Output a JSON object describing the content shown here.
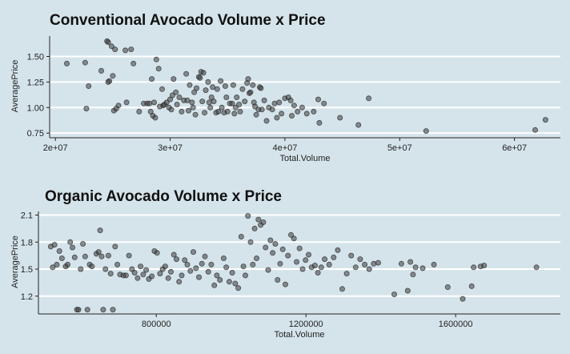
{
  "chart_data": [
    {
      "type": "scatter",
      "title": "Conventional Avocado Volume x Price",
      "xlabel": "Total.Volume",
      "ylabel": "AveragePrice",
      "xlim": [
        19500000,
        64000000
      ],
      "ylim": [
        0.72,
        1.7
      ],
      "xticks": [
        20000000,
        30000000,
        40000000,
        50000000,
        60000000
      ],
      "xtick_labels": [
        "2e+07",
        "3e+07",
        "4e+07",
        "5e+07",
        "6e+07"
      ],
      "yticks": [
        0.75,
        1.0,
        1.25,
        1.5
      ],
      "ytick_labels": [
        "0.75",
        "1.00",
        "1.25",
        "1.50"
      ],
      "grid": true,
      "points": [
        [
          21000000,
          1.43
        ],
        [
          22600000,
          1.44
        ],
        [
          22900000,
          1.21
        ],
        [
          22700000,
          0.99
        ],
        [
          24000000,
          1.36
        ],
        [
          24500000,
          1.65
        ],
        [
          24600000,
          1.64
        ],
        [
          24900000,
          1.6
        ],
        [
          25200000,
          1.57
        ],
        [
          25000000,
          1.31
        ],
        [
          24700000,
          1.26
        ],
        [
          24600000,
          1.25
        ],
        [
          25100000,
          0.97
        ],
        [
          25300000,
          0.99
        ],
        [
          26100000,
          1.56
        ],
        [
          26600000,
          1.57
        ],
        [
          26800000,
          1.43
        ],
        [
          25500000,
          1.02
        ],
        [
          26200000,
          1.05
        ],
        [
          27300000,
          0.96
        ],
        [
          27700000,
          1.04
        ],
        [
          28000000,
          1.04
        ],
        [
          28200000,
          1.04
        ],
        [
          28300000,
          0.96
        ],
        [
          28500000,
          0.92
        ],
        [
          28700000,
          0.9
        ],
        [
          28800000,
          1.47
        ],
        [
          29000000,
          1.38
        ],
        [
          28400000,
          1.28
        ],
        [
          28600000,
          1.05
        ],
        [
          29100000,
          1.01
        ],
        [
          29300000,
          1.18
        ],
        [
          29400000,
          1.02
        ],
        [
          29500000,
          1.03
        ],
        [
          29700000,
          1.05
        ],
        [
          29900000,
          1.0
        ],
        [
          30000000,
          1.08
        ],
        [
          30100000,
          0.98
        ],
        [
          30200000,
          1.12
        ],
        [
          30300000,
          1.28
        ],
        [
          30500000,
          1.15
        ],
        [
          30600000,
          1.03
        ],
        [
          30800000,
          1.1
        ],
        [
          31000000,
          0.96
        ],
        [
          31200000,
          1.07
        ],
        [
          31400000,
          1.33
        ],
        [
          31500000,
          1.07
        ],
        [
          31600000,
          0.97
        ],
        [
          31700000,
          1.22
        ],
        [
          31900000,
          1.05
        ],
        [
          32000000,
          1.0
        ],
        [
          32100000,
          1.15
        ],
        [
          32200000,
          0.93
        ],
        [
          32300000,
          1.19
        ],
        [
          32500000,
          1.3
        ],
        [
          32600000,
          1.29
        ],
        [
          32700000,
          1.35
        ],
        [
          32800000,
          1.06
        ],
        [
          32900000,
          1.34
        ],
        [
          33000000,
          0.95
        ],
        [
          33100000,
          1.17
        ],
        [
          33300000,
          1.25
        ],
        [
          33400000,
          1.05
        ],
        [
          33500000,
          1.0
        ],
        [
          33600000,
          1.1
        ],
        [
          33700000,
          1.2
        ],
        [
          33800000,
          1.06
        ],
        [
          34000000,
          0.95
        ],
        [
          34100000,
          1.18
        ],
        [
          34200000,
          0.96
        ],
        [
          34400000,
          1.26
        ],
        [
          34500000,
          1.0
        ],
        [
          34700000,
          0.95
        ],
        [
          34800000,
          1.21
        ],
        [
          34900000,
          1.1
        ],
        [
          35000000,
          0.96
        ],
        [
          35200000,
          1.04
        ],
        [
          35400000,
          1.04
        ],
        [
          35500000,
          1.22
        ],
        [
          35600000,
          0.94
        ],
        [
          35700000,
          1.0
        ],
        [
          35800000,
          1.1
        ],
        [
          36000000,
          1.03
        ],
        [
          36100000,
          0.96
        ],
        [
          36300000,
          1.18
        ],
        [
          36500000,
          1.06
        ],
        [
          36700000,
          1.24
        ],
        [
          36800000,
          1.28
        ],
        [
          36900000,
          1.14
        ],
        [
          37000000,
          1.15
        ],
        [
          37200000,
          1.22
        ],
        [
          37300000,
          1.05
        ],
        [
          37400000,
          1.01
        ],
        [
          37500000,
          0.93
        ],
        [
          37700000,
          0.98
        ],
        [
          37800000,
          1.2
        ],
        [
          37900000,
          1.19
        ],
        [
          38000000,
          0.98
        ],
        [
          38200000,
          1.07
        ],
        [
          38400000,
          0.87
        ],
        [
          38600000,
          1.0
        ],
        [
          38900000,
          0.98
        ],
        [
          39100000,
          1.04
        ],
        [
          39300000,
          0.9
        ],
        [
          39500000,
          1.05
        ],
        [
          39700000,
          0.94
        ],
        [
          40000000,
          1.09
        ],
        [
          40300000,
          1.1
        ],
        [
          40500000,
          1.07
        ],
        [
          40600000,
          0.92
        ],
        [
          40800000,
          1.02
        ],
        [
          41100000,
          0.96
        ],
        [
          41500000,
          1.0
        ],
        [
          41900000,
          0.94
        ],
        [
          42500000,
          0.96
        ],
        [
          42900000,
          1.08
        ],
        [
          43000000,
          0.85
        ],
        [
          43400000,
          1.04
        ],
        [
          44800000,
          0.9
        ],
        [
          46400000,
          0.83
        ],
        [
          47300000,
          1.09
        ],
        [
          52300000,
          0.77
        ],
        [
          61800000,
          0.78
        ],
        [
          62700000,
          0.88
        ]
      ]
    },
    {
      "type": "scatter",
      "title": "Organic Avocado Volume x Price",
      "xlabel": "Total.Volume",
      "ylabel": "AveragePrice",
      "xlim": [
        485000,
        1880000
      ],
      "ylim": [
        1.02,
        2.14
      ],
      "xticks": [
        800000,
        1200000,
        1600000
      ],
      "xtick_labels": [
        "800000",
        "1200000",
        "1600000"
      ],
      "yticks": [
        1.2,
        1.5,
        1.8,
        2.1
      ],
      "ytick_labels": [
        "1.2",
        "1.5",
        "1.8",
        "2.1"
      ],
      "grid": true,
      "points": [
        [
          518000,
          1.75
        ],
        [
          523000,
          1.52
        ],
        [
          528000,
          1.77
        ],
        [
          534000,
          1.55
        ],
        [
          541000,
          1.7
        ],
        [
          548000,
          1.62
        ],
        [
          558000,
          1.53
        ],
        [
          563000,
          1.55
        ],
        [
          570000,
          1.8
        ],
        [
          576000,
          1.74
        ],
        [
          582000,
          1.63
        ],
        [
          588000,
          1.05
        ],
        [
          592000,
          1.05
        ],
        [
          598000,
          1.5
        ],
        [
          604000,
          1.78
        ],
        [
          610000,
          1.64
        ],
        [
          616000,
          1.05
        ],
        [
          622000,
          1.55
        ],
        [
          628000,
          1.53
        ],
        [
          640000,
          1.67
        ],
        [
          646000,
          1.69
        ],
        [
          650000,
          1.93
        ],
        [
          654000,
          1.64
        ],
        [
          658000,
          1.05
        ],
        [
          664000,
          1.5
        ],
        [
          672000,
          1.65
        ],
        [
          678000,
          1.45
        ],
        [
          684000,
          1.05
        ],
        [
          690000,
          1.75
        ],
        [
          696000,
          1.55
        ],
        [
          703000,
          1.44
        ],
        [
          712000,
          1.43
        ],
        [
          719000,
          1.43
        ],
        [
          727000,
          1.65
        ],
        [
          735000,
          1.5
        ],
        [
          742000,
          1.46
        ],
        [
          750000,
          1.4
        ],
        [
          758000,
          1.53
        ],
        [
          765000,
          1.44
        ],
        [
          773000,
          1.49
        ],
        [
          780000,
          1.39
        ],
        [
          788000,
          1.42
        ],
        [
          795000,
          1.7
        ],
        [
          802000,
          1.68
        ],
        [
          810000,
          1.45
        ],
        [
          817000,
          1.5
        ],
        [
          824000,
          1.53
        ],
        [
          832000,
          1.4
        ],
        [
          839000,
          1.47
        ],
        [
          847000,
          1.66
        ],
        [
          854000,
          1.61
        ],
        [
          861000,
          1.36
        ],
        [
          868000,
          1.43
        ],
        [
          876000,
          1.6
        ],
        [
          883000,
          1.55
        ],
        [
          891000,
          1.48
        ],
        [
          899000,
          1.69
        ],
        [
          906000,
          1.51
        ],
        [
          914000,
          1.41
        ],
        [
          922000,
          1.56
        ],
        [
          930000,
          1.64
        ],
        [
          939000,
          1.47
        ],
        [
          947000,
          1.55
        ],
        [
          955000,
          1.32
        ],
        [
          962000,
          1.43
        ],
        [
          970000,
          1.38
        ],
        [
          980000,
          1.62
        ],
        [
          987000,
          1.52
        ],
        [
          995000,
          1.36
        ],
        [
          1003000,
          1.46
        ],
        [
          1011000,
          1.34
        ],
        [
          1019000,
          1.29
        ],
        [
          1027000,
          1.86
        ],
        [
          1033000,
          1.53
        ],
        [
          1038000,
          1.43
        ],
        [
          1045000,
          2.09
        ],
        [
          1052000,
          1.8
        ],
        [
          1058000,
          1.55
        ],
        [
          1063000,
          1.95
        ],
        [
          1068000,
          1.62
        ],
        [
          1073000,
          2.05
        ],
        [
          1079000,
          1.99
        ],
        [
          1086000,
          2.02
        ],
        [
          1092000,
          1.74
        ],
        [
          1099000,
          1.49
        ],
        [
          1105000,
          1.82
        ],
        [
          1111000,
          1.68
        ],
        [
          1118000,
          1.78
        ],
        [
          1124000,
          1.38
        ],
        [
          1131000,
          1.56
        ],
        [
          1138000,
          1.72
        ],
        [
          1145000,
          1.33
        ],
        [
          1152000,
          1.65
        ],
        [
          1160000,
          1.88
        ],
        [
          1168000,
          1.84
        ],
        [
          1175000,
          1.58
        ],
        [
          1183000,
          1.73
        ],
        [
          1191000,
          1.5
        ],
        [
          1199000,
          1.6
        ],
        [
          1207000,
          1.66
        ],
        [
          1215000,
          1.52
        ],
        [
          1224000,
          1.54
        ],
        [
          1232000,
          1.46
        ],
        [
          1241000,
          1.52
        ],
        [
          1250000,
          1.61
        ],
        [
          1262000,
          1.55
        ],
        [
          1274000,
          1.63
        ],
        [
          1285000,
          1.71
        ],
        [
          1297000,
          1.28
        ],
        [
          1309000,
          1.45
        ],
        [
          1321000,
          1.65
        ],
        [
          1333000,
          1.52
        ],
        [
          1345000,
          1.61
        ],
        [
          1357000,
          1.55
        ],
        [
          1369000,
          1.5
        ],
        [
          1381000,
          1.56
        ],
        [
          1393000,
          1.57
        ],
        [
          1436000,
          1.22
        ],
        [
          1455000,
          1.56
        ],
        [
          1472000,
          1.26
        ],
        [
          1479000,
          1.58
        ],
        [
          1486000,
          1.44
        ],
        [
          1493000,
          1.52
        ],
        [
          1512000,
          1.51
        ],
        [
          1542000,
          1.55
        ],
        [
          1579000,
          1.3
        ],
        [
          1619000,
          1.17
        ],
        [
          1643000,
          1.31
        ],
        [
          1648000,
          1.52
        ],
        [
          1667000,
          1.53
        ],
        [
          1676000,
          1.54
        ],
        [
          1816000,
          1.52
        ]
      ]
    }
  ]
}
